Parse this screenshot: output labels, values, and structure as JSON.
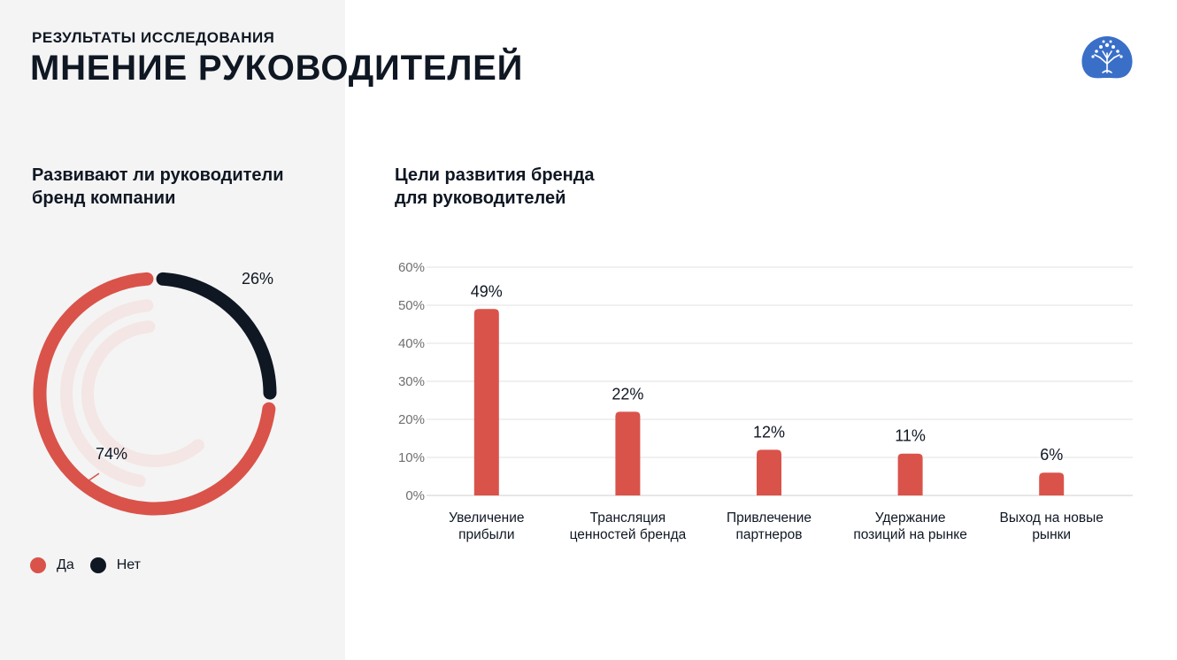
{
  "header": {
    "supertitle": "РЕЗУЛЬТАТЫ ИССЛЕДОВАНИЯ",
    "title": "МНЕНИЕ РУКОВОДИТЕЛЕЙ",
    "logo_icon": "tree-logo-icon"
  },
  "colors": {
    "accent": "#d9534a",
    "dark": "#0f1723",
    "track": "#f3e6e4",
    "grid": "#e2e2e2",
    "axis_text": "#6f6f6f",
    "logo": "#3a6fc8"
  },
  "left": {
    "subtitle_lines": [
      "Развивают ли руководители",
      "бренд компании"
    ],
    "legend": [
      {
        "label": "Да",
        "color": "#d9534a"
      },
      {
        "label": "Нет",
        "color": "#0f1723"
      }
    ]
  },
  "right": {
    "subtitle_lines": [
      "Цели развития бренда",
      "для руководителей"
    ]
  },
  "chart_data": [
    {
      "type": "pie",
      "title": "Развивают ли руководители бренд компании",
      "categories": [
        "Да",
        "Нет"
      ],
      "values": [
        74,
        26
      ],
      "value_labels": [
        "74%",
        "26%"
      ],
      "legend_position": "bottom-left"
    },
    {
      "type": "bar",
      "title": "Цели развития бренда для руководителей",
      "categories": [
        [
          "Увеличение",
          "прибыли"
        ],
        [
          "Трансляция",
          "ценностей бренда"
        ],
        [
          "Привлечение",
          "партнеров"
        ],
        [
          "Удержание",
          "позиций на рынке"
        ],
        [
          "Выход на новые",
          "рынки"
        ]
      ],
      "values": [
        49,
        22,
        12,
        11,
        6
      ],
      "value_labels": [
        "49%",
        "22%",
        "12%",
        "11%",
        "6%"
      ],
      "ylim": [
        0,
        60
      ],
      "yticks": [
        "0%",
        "10%",
        "20%",
        "30%",
        "40%",
        "50%",
        "60%"
      ],
      "grid": true
    }
  ]
}
